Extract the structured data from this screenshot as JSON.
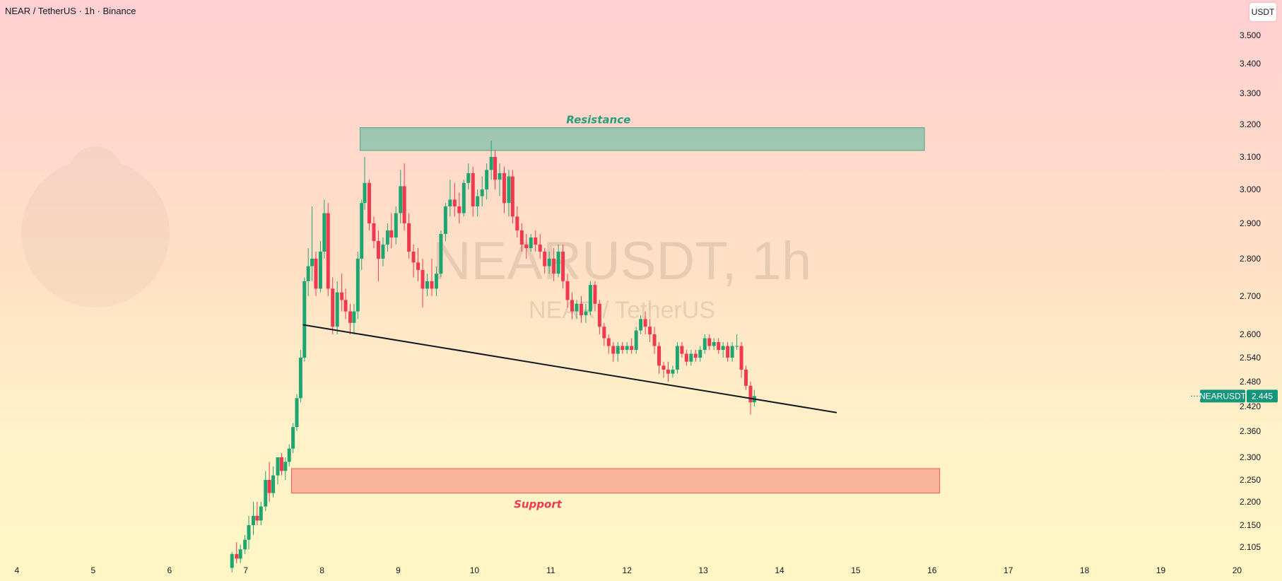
{
  "header": {
    "title": "NEAR / TetherUS · 1h · Binance",
    "currency_button": "USDT"
  },
  "watermark": {
    "symbol": "NEARUSDT, 1h",
    "name": "NEAR / TetherUS"
  },
  "colors": {
    "bull": "#1ea672",
    "bear": "#f0394f",
    "resistance_fill": "#8fc4ad",
    "resistance_stroke": "#2a9d7c",
    "support_fill": "#f7ab94",
    "support_stroke": "#f0394f",
    "trendline": "#131722",
    "price_tag": "#14967a"
  },
  "chart_data": {
    "type": "candlestick",
    "symbol": "NEARUSDT",
    "interval": "1h",
    "exchange": "Binance",
    "last_price": {
      "label": "NEARUSDT",
      "value": "2.445"
    },
    "y_ticks": [
      "3.500",
      "3.400",
      "3.300",
      "3.200",
      "3.100",
      "3.000",
      "2.900",
      "2.800",
      "2.700",
      "2.600",
      "2.540",
      "2.480",
      "2.420",
      "2.360",
      "2.300",
      "2.250",
      "2.200",
      "2.150",
      "2.105"
    ],
    "x_ticks": [
      "4",
      "5",
      "6",
      "7",
      "8",
      "9",
      "10",
      "11",
      "12",
      "13",
      "14",
      "15",
      "16",
      "17",
      "18",
      "19",
      "20"
    ],
    "zones": [
      {
        "name": "resistance",
        "label": "Resistance",
        "x_start": 8.5,
        "x_end": 15.9,
        "y_low": 3.12,
        "y_high": 3.19
      },
      {
        "name": "support",
        "label": "Support",
        "x_start": 7.6,
        "x_end": 16.1,
        "y_low": 2.22,
        "y_high": 2.275
      }
    ],
    "trendline": {
      "x1": 7.75,
      "y1": 2.625,
      "x2": 14.75,
      "y2": 2.405
    },
    "candles": [
      [
        6.82,
        2.06,
        2.095,
        2.05,
        2.09
      ],
      [
        6.88,
        2.09,
        2.115,
        2.07,
        2.08
      ],
      [
        6.93,
        2.08,
        2.11,
        2.07,
        2.1
      ],
      [
        6.99,
        2.1,
        2.13,
        2.09,
        2.12
      ],
      [
        7.04,
        2.12,
        2.17,
        2.1,
        2.15
      ],
      [
        7.1,
        2.15,
        2.2,
        2.13,
        2.17
      ],
      [
        7.15,
        2.17,
        2.2,
        2.15,
        2.16
      ],
      [
        7.2,
        2.16,
        2.2,
        2.15,
        2.19
      ],
      [
        7.26,
        2.19,
        2.27,
        2.18,
        2.25
      ],
      [
        7.31,
        2.25,
        2.29,
        2.2,
        2.22
      ],
      [
        7.36,
        2.22,
        2.28,
        2.21,
        2.26
      ],
      [
        7.42,
        2.26,
        2.3,
        2.24,
        2.3
      ],
      [
        7.47,
        2.3,
        2.31,
        2.26,
        2.27
      ],
      [
        7.52,
        2.27,
        2.3,
        2.25,
        2.29
      ],
      [
        7.57,
        2.29,
        2.33,
        2.28,
        2.32
      ],
      [
        7.62,
        2.32,
        2.38,
        2.31,
        2.37
      ],
      [
        7.67,
        2.37,
        2.45,
        2.36,
        2.44
      ],
      [
        7.72,
        2.44,
        2.56,
        2.43,
        2.54
      ],
      [
        7.77,
        2.54,
        2.75,
        2.53,
        2.74
      ],
      [
        7.82,
        2.74,
        2.83,
        2.7,
        2.78
      ],
      [
        7.87,
        2.78,
        2.95,
        2.74,
        2.8
      ],
      [
        7.92,
        2.8,
        2.82,
        2.7,
        2.72
      ],
      [
        7.98,
        2.72,
        2.85,
        2.71,
        2.82
      ],
      [
        8.03,
        2.82,
        2.97,
        2.8,
        2.93
      ],
      [
        8.08,
        2.93,
        2.96,
        2.7,
        2.72
      ],
      [
        8.14,
        2.72,
        2.75,
        2.6,
        2.62
      ],
      [
        8.2,
        2.62,
        2.74,
        2.6,
        2.71
      ],
      [
        8.26,
        2.71,
        2.76,
        2.66,
        2.69
      ],
      [
        8.31,
        2.69,
        2.72,
        2.64,
        2.66
      ],
      [
        8.37,
        2.66,
        2.68,
        2.6,
        2.63
      ],
      [
        8.42,
        2.63,
        2.68,
        2.6,
        2.66
      ],
      [
        8.47,
        2.66,
        2.82,
        2.64,
        2.8
      ],
      [
        8.52,
        2.8,
        2.97,
        2.77,
        2.96
      ],
      [
        8.56,
        2.96,
        3.1,
        2.94,
        3.02
      ],
      [
        8.62,
        3.02,
        3.03,
        2.88,
        2.9
      ],
      [
        8.68,
        2.9,
        2.92,
        2.83,
        2.85
      ],
      [
        8.74,
        2.85,
        2.88,
        2.74,
        2.8
      ],
      [
        8.8,
        2.8,
        2.86,
        2.78,
        2.84
      ],
      [
        8.86,
        2.84,
        2.9,
        2.82,
        2.88
      ],
      [
        8.91,
        2.88,
        2.93,
        2.83,
        2.86
      ],
      [
        8.97,
        2.86,
        2.95,
        2.84,
        2.93
      ],
      [
        9.03,
        2.93,
        3.06,
        2.9,
        3.01
      ],
      [
        9.08,
        3.01,
        3.08,
        2.88,
        2.9
      ],
      [
        9.14,
        2.9,
        2.93,
        2.8,
        2.82
      ],
      [
        9.2,
        2.82,
        2.84,
        2.75,
        2.79
      ],
      [
        9.26,
        2.79,
        2.83,
        2.74,
        2.77
      ],
      [
        9.32,
        2.77,
        2.8,
        2.67,
        2.72
      ],
      [
        9.38,
        2.72,
        2.76,
        2.7,
        2.74
      ],
      [
        9.44,
        2.74,
        2.8,
        2.7,
        2.72
      ],
      [
        9.5,
        2.72,
        2.78,
        2.7,
        2.76
      ],
      [
        9.56,
        2.76,
        2.88,
        2.75,
        2.87
      ],
      [
        9.62,
        2.87,
        2.96,
        2.85,
        2.95
      ],
      [
        9.68,
        2.95,
        3.03,
        2.92,
        2.97
      ],
      [
        9.74,
        2.97,
        3.02,
        2.92,
        2.95
      ],
      [
        9.8,
        2.95,
        2.99,
        2.9,
        2.93
      ],
      [
        9.86,
        2.93,
        3.03,
        2.92,
        3.02
      ],
      [
        9.92,
        3.02,
        3.08,
        3.0,
        3.05
      ],
      [
        9.98,
        3.05,
        3.07,
        2.92,
        2.95
      ],
      [
        10.04,
        2.95,
        3.0,
        2.92,
        2.98
      ],
      [
        10.1,
        2.98,
        3.04,
        2.95,
        3.0
      ],
      [
        10.16,
        3.0,
        3.08,
        2.97,
        3.06
      ],
      [
        10.22,
        3.06,
        3.15,
        3.03,
        3.1
      ],
      [
        10.27,
        3.1,
        3.12,
        3.0,
        3.03
      ],
      [
        10.33,
        3.03,
        3.08,
        2.98,
        3.05
      ],
      [
        10.39,
        3.05,
        3.07,
        2.93,
        2.96
      ],
      [
        10.45,
        2.96,
        3.06,
        2.92,
        3.04
      ],
      [
        10.5,
        3.04,
        3.06,
        2.9,
        2.92
      ],
      [
        10.56,
        2.92,
        2.95,
        2.86,
        2.88
      ],
      [
        10.62,
        2.88,
        2.9,
        2.82,
        2.84
      ],
      [
        10.68,
        2.84,
        2.87,
        2.8,
        2.83
      ],
      [
        10.74,
        2.83,
        2.87,
        2.82,
        2.86
      ],
      [
        10.8,
        2.86,
        2.88,
        2.82,
        2.84
      ],
      [
        10.86,
        2.84,
        2.87,
        2.8,
        2.82
      ],
      [
        10.92,
        2.82,
        2.83,
        2.76,
        2.78
      ],
      [
        10.98,
        2.78,
        2.82,
        2.76,
        2.8
      ],
      [
        11.04,
        2.8,
        2.83,
        2.74,
        2.76
      ],
      [
        11.1,
        2.76,
        2.84,
        2.75,
        2.82
      ],
      [
        11.16,
        2.82,
        2.84,
        2.72,
        2.74
      ],
      [
        11.22,
        2.74,
        2.76,
        2.67,
        2.69
      ],
      [
        11.28,
        2.69,
        2.71,
        2.64,
        2.66
      ],
      [
        11.34,
        2.66,
        2.69,
        2.64,
        2.68
      ],
      [
        11.4,
        2.68,
        2.7,
        2.63,
        2.65
      ],
      [
        11.46,
        2.65,
        2.68,
        2.63,
        2.66
      ],
      [
        11.52,
        2.66,
        2.74,
        2.65,
        2.73
      ],
      [
        11.58,
        2.73,
        2.74,
        2.66,
        2.68
      ],
      [
        11.64,
        2.68,
        2.69,
        2.6,
        2.62
      ],
      [
        11.7,
        2.62,
        2.63,
        2.57,
        2.59
      ],
      [
        11.76,
        2.59,
        2.6,
        2.55,
        2.57
      ],
      [
        11.82,
        2.57,
        2.58,
        2.53,
        2.55
      ],
      [
        11.88,
        2.55,
        2.58,
        2.53,
        2.57
      ],
      [
        11.94,
        2.57,
        2.58,
        2.55,
        2.56
      ],
      [
        12.0,
        2.56,
        2.58,
        2.55,
        2.57
      ],
      [
        12.06,
        2.57,
        2.59,
        2.55,
        2.56
      ],
      [
        12.12,
        2.56,
        2.62,
        2.55,
        2.61
      ],
      [
        12.18,
        2.61,
        2.65,
        2.6,
        2.64
      ],
      [
        12.24,
        2.64,
        2.66,
        2.6,
        2.62
      ],
      [
        12.3,
        2.62,
        2.64,
        2.58,
        2.6
      ],
      [
        12.36,
        2.6,
        2.62,
        2.55,
        2.57
      ],
      [
        12.42,
        2.57,
        2.58,
        2.5,
        2.52
      ],
      [
        12.48,
        2.52,
        2.53,
        2.49,
        2.51
      ],
      [
        12.54,
        2.51,
        2.53,
        2.48,
        2.5
      ],
      [
        12.6,
        2.5,
        2.52,
        2.49,
        2.51
      ],
      [
        12.66,
        2.51,
        2.58,
        2.5,
        2.57
      ],
      [
        12.72,
        2.57,
        2.58,
        2.54,
        2.55
      ],
      [
        12.78,
        2.55,
        2.56,
        2.52,
        2.53
      ],
      [
        12.84,
        2.53,
        2.56,
        2.52,
        2.55
      ],
      [
        12.9,
        2.55,
        2.56,
        2.53,
        2.54
      ],
      [
        12.96,
        2.54,
        2.57,
        2.53,
        2.56
      ],
      [
        13.02,
        2.56,
        2.6,
        2.55,
        2.59
      ],
      [
        13.08,
        2.59,
        2.6,
        2.56,
        2.57
      ],
      [
        13.14,
        2.57,
        2.59,
        2.56,
        2.58
      ],
      [
        13.2,
        2.58,
        2.59,
        2.55,
        2.56
      ],
      [
        13.26,
        2.56,
        2.58,
        2.54,
        2.57
      ],
      [
        13.32,
        2.57,
        2.58,
        2.53,
        2.54
      ],
      [
        13.38,
        2.54,
        2.58,
        2.53,
        2.57
      ],
      [
        13.44,
        2.57,
        2.6,
        2.56,
        2.57
      ],
      [
        13.5,
        2.57,
        2.58,
        2.49,
        2.51
      ],
      [
        13.56,
        2.51,
        2.52,
        2.46,
        2.47
      ],
      [
        13.62,
        2.47,
        2.48,
        2.4,
        2.43
      ],
      [
        13.67,
        2.43,
        2.46,
        2.42,
        2.445
      ]
    ]
  }
}
